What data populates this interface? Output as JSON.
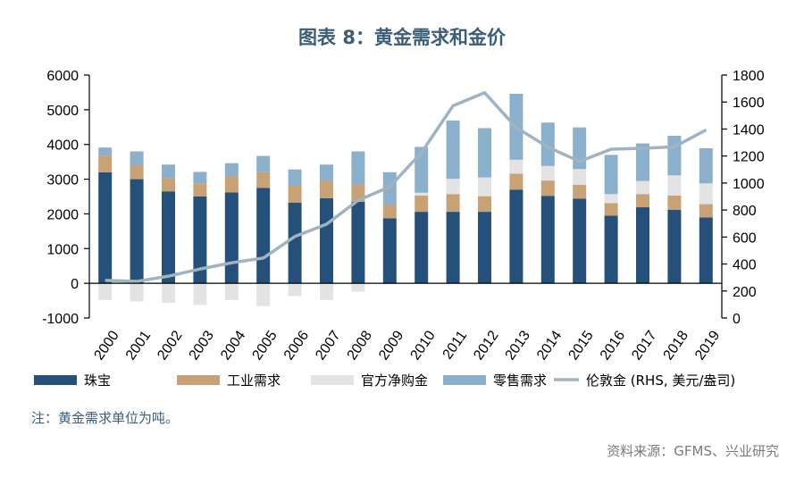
{
  "title": "图表 8：黄金需求和金价",
  "note": "注：黄金需求单位为吨。",
  "source": "资料来源：GFMS、兴业研究",
  "chart_data": {
    "type": "bar",
    "stacked": true,
    "categories": [
      "2000",
      "2001",
      "2002",
      "2003",
      "2004",
      "2005",
      "2006",
      "2007",
      "2008",
      "2009",
      "2010",
      "2011",
      "2012",
      "2013",
      "2014",
      "2015",
      "2016",
      "2017",
      "2018",
      "2019"
    ],
    "series": [
      {
        "name": "珠宝",
        "color": "#24507a",
        "values": [
          3200,
          3000,
          2650,
          2500,
          2620,
          2750,
          2320,
          2450,
          2350,
          1870,
          2060,
          2060,
          2060,
          2700,
          2520,
          2440,
          1950,
          2190,
          2120,
          1900
        ]
      },
      {
        "name": "工业需求",
        "color": "#c8a274",
        "values": [
          480,
          400,
          380,
          380,
          470,
          450,
          490,
          500,
          500,
          400,
          470,
          510,
          450,
          460,
          440,
          400,
          360,
          380,
          410,
          380
        ]
      },
      {
        "name": "官方净购金",
        "color": "#e3e3e3",
        "values": [
          -480,
          -520,
          -560,
          -620,
          -480,
          -660,
          -370,
          -480,
          -240,
          -30,
          80,
          440,
          540,
          400,
          420,
          450,
          260,
          380,
          580,
          600
        ]
      },
      {
        "name": "零售需求",
        "color": "#8ab0cc",
        "values": [
          230,
          400,
          390,
          330,
          370,
          470,
          470,
          470,
          950,
          930,
          1320,
          1680,
          1420,
          1900,
          1250,
          1200,
          1130,
          1080,
          1140,
          1010
        ]
      },
      {
        "name": "伦敦金 (RHS, 美元/盎司)",
        "color": "#9fb3c0",
        "type": "line",
        "values": [
          279,
          271,
          310,
          363,
          409,
          444,
          604,
          695,
          872,
          972,
          1225,
          1572,
          1669,
          1411,
          1266,
          1160,
          1251,
          1257,
          1268,
          1393
        ]
      }
    ],
    "yleft": {
      "min": -1000,
      "max": 6000,
      "ticks": [
        -1000,
        0,
        1000,
        2000,
        3000,
        4000,
        5000,
        6000
      ]
    },
    "yright": {
      "min": 0,
      "max": 1800,
      "ticks": [
        0,
        200,
        400,
        600,
        800,
        1000,
        1200,
        1400,
        1600,
        1800
      ]
    },
    "legend_position": "bottom"
  }
}
